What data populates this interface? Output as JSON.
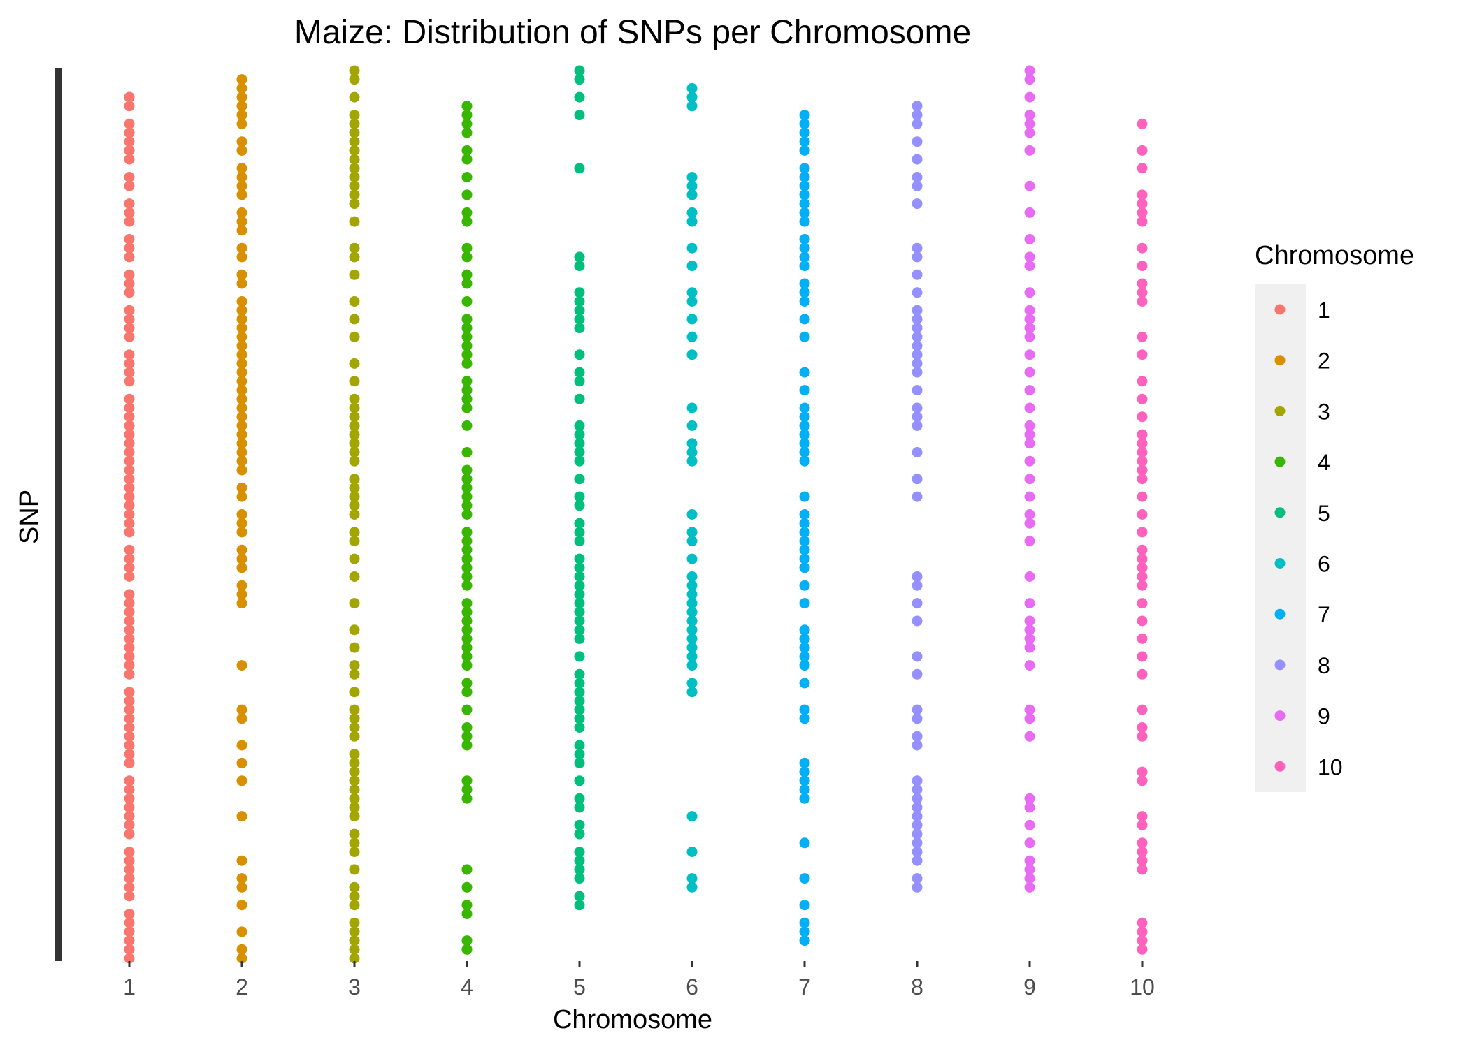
{
  "chart_data": {
    "type": "scatter",
    "title": "Maize: Distribution of SNPs per Chromosome",
    "xlabel": "Chromosome",
    "ylabel": "SNP",
    "categories": [
      "1",
      "2",
      "3",
      "4",
      "5",
      "6",
      "7",
      "8",
      "9",
      "10"
    ],
    "ylim": [
      0,
      1
    ],
    "grid": false,
    "legend": {
      "title": "Chromosome",
      "placement": "right",
      "entries": [
        "1",
        "2",
        "3",
        "4",
        "5",
        "6",
        "7",
        "8",
        "9",
        "10"
      ]
    },
    "colors": [
      "#F8766D",
      "#D89000",
      "#A3A500",
      "#39B600",
      "#00BF7D",
      "#00BFC4",
      "#00B0F6",
      "#9590FF",
      "#E76BF3",
      "#FF62BC"
    ],
    "series": [
      {
        "chromosome": "1",
        "values": [
          0.03,
          0.03,
          0.03,
          0.03,
          0.04,
          0.06,
          0.07,
          0.07,
          0.08,
          0.09,
          0.09,
          0.1,
          0.12,
          0.13,
          0.15,
          0.16,
          0.17,
          0.19,
          0.2,
          0.21,
          0.23,
          0.24,
          0.25,
          0.27,
          0.28,
          0.29,
          0.3,
          0.32,
          0.33,
          0.34,
          0.35,
          0.37,
          0.38,
          0.39,
          0.4,
          0.41,
          0.42,
          0.43,
          0.44,
          0.45,
          0.46,
          0.47,
          0.48,
          0.49,
          0.5,
          0.51,
          0.52,
          0.54,
          0.55,
          0.56,
          0.57,
          0.59,
          0.6,
          0.61,
          0.62,
          0.63,
          0.64,
          0.65,
          0.66,
          0.67,
          0.68,
          0.7,
          0.71,
          0.72,
          0.73,
          0.74,
          0.75,
          0.76,
          0.77,
          0.78,
          0.8,
          0.81,
          0.82,
          0.83,
          0.84,
          0.85,
          0.86,
          0.88,
          0.89,
          0.9,
          0.91,
          0.92,
          0.93,
          0.95,
          0.96,
          0.97,
          0.98,
          0.99,
          0.99,
          1.0
        ]
      },
      {
        "chromosome": "2",
        "values": [
          0.01,
          0.01,
          0.02,
          0.03,
          0.04,
          0.05,
          0.06,
          0.08,
          0.09,
          0.11,
          0.12,
          0.13,
          0.14,
          0.16,
          0.17,
          0.18,
          0.2,
          0.21,
          0.23,
          0.24,
          0.26,
          0.27,
          0.28,
          0.29,
          0.3,
          0.31,
          0.32,
          0.33,
          0.34,
          0.35,
          0.36,
          0.37,
          0.38,
          0.39,
          0.4,
          0.41,
          0.42,
          0.43,
          0.44,
          0.45,
          0.47,
          0.48,
          0.5,
          0.51,
          0.52,
          0.54,
          0.55,
          0.56,
          0.58,
          0.59,
          0.6,
          0.67,
          0.72,
          0.73,
          0.76,
          0.78,
          0.8,
          0.84,
          0.89,
          0.91,
          0.92,
          0.94,
          0.97,
          0.99,
          1.0
        ]
      },
      {
        "chromosome": "3",
        "values": [
          0.0,
          0.01,
          0.03,
          0.05,
          0.06,
          0.07,
          0.08,
          0.09,
          0.1,
          0.11,
          0.12,
          0.13,
          0.14,
          0.15,
          0.17,
          0.2,
          0.21,
          0.23,
          0.26,
          0.28,
          0.3,
          0.33,
          0.35,
          0.37,
          0.38,
          0.39,
          0.4,
          0.41,
          0.42,
          0.43,
          0.44,
          0.46,
          0.47,
          0.48,
          0.49,
          0.5,
          0.52,
          0.53,
          0.55,
          0.57,
          0.6,
          0.63,
          0.65,
          0.67,
          0.68,
          0.7,
          0.72,
          0.73,
          0.74,
          0.75,
          0.77,
          0.78,
          0.79,
          0.8,
          0.81,
          0.82,
          0.83,
          0.84,
          0.86,
          0.87,
          0.88,
          0.9,
          0.92,
          0.93,
          0.94,
          0.96,
          0.97,
          0.98,
          0.99,
          1.0
        ]
      },
      {
        "chromosome": "4",
        "values": [
          0.04,
          0.05,
          0.06,
          0.07,
          0.09,
          0.1,
          0.12,
          0.14,
          0.16,
          0.17,
          0.2,
          0.21,
          0.23,
          0.24,
          0.26,
          0.28,
          0.29,
          0.3,
          0.31,
          0.32,
          0.33,
          0.35,
          0.36,
          0.37,
          0.38,
          0.4,
          0.43,
          0.45,
          0.46,
          0.47,
          0.48,
          0.49,
          0.5,
          0.52,
          0.53,
          0.54,
          0.55,
          0.56,
          0.57,
          0.58,
          0.6,
          0.61,
          0.62,
          0.63,
          0.64,
          0.65,
          0.66,
          0.67,
          0.69,
          0.7,
          0.72,
          0.74,
          0.75,
          0.76,
          0.8,
          0.81,
          0.82,
          0.9,
          0.92,
          0.94,
          0.95,
          0.98,
          0.99,
          0.99
        ]
      },
      {
        "chromosome": "5",
        "values": [
          0.0,
          0.01,
          0.03,
          0.05,
          0.11,
          0.21,
          0.22,
          0.25,
          0.26,
          0.27,
          0.28,
          0.29,
          0.32,
          0.34,
          0.35,
          0.37,
          0.4,
          0.41,
          0.42,
          0.43,
          0.44,
          0.46,
          0.48,
          0.49,
          0.51,
          0.52,
          0.53,
          0.55,
          0.56,
          0.57,
          0.58,
          0.59,
          0.6,
          0.61,
          0.62,
          0.63,
          0.64,
          0.66,
          0.68,
          0.69,
          0.7,
          0.71,
          0.72,
          0.73,
          0.74,
          0.76,
          0.77,
          0.78,
          0.8,
          0.82,
          0.83,
          0.85,
          0.86,
          0.88,
          0.89,
          0.9,
          0.91,
          0.93,
          0.94
        ]
      },
      {
        "chromosome": "6",
        "values": [
          0.02,
          0.03,
          0.04,
          0.12,
          0.13,
          0.14,
          0.16,
          0.17,
          0.2,
          0.22,
          0.25,
          0.26,
          0.28,
          0.3,
          0.32,
          0.38,
          0.4,
          0.42,
          0.43,
          0.44,
          0.5,
          0.52,
          0.53,
          0.55,
          0.57,
          0.58,
          0.59,
          0.6,
          0.61,
          0.62,
          0.63,
          0.64,
          0.65,
          0.66,
          0.67,
          0.69,
          0.7,
          0.84,
          0.88,
          0.91,
          0.92
        ]
      },
      {
        "chromosome": "7",
        "values": [
          0.05,
          0.06,
          0.07,
          0.08,
          0.09,
          0.11,
          0.12,
          0.13,
          0.14,
          0.15,
          0.16,
          0.17,
          0.19,
          0.2,
          0.21,
          0.22,
          0.24,
          0.25,
          0.26,
          0.28,
          0.3,
          0.34,
          0.36,
          0.38,
          0.39,
          0.4,
          0.41,
          0.42,
          0.43,
          0.44,
          0.48,
          0.5,
          0.51,
          0.52,
          0.53,
          0.54,
          0.55,
          0.56,
          0.58,
          0.6,
          0.63,
          0.64,
          0.65,
          0.66,
          0.67,
          0.69,
          0.72,
          0.73,
          0.78,
          0.79,
          0.8,
          0.81,
          0.82,
          0.87,
          0.91,
          0.94,
          0.96,
          0.97,
          0.98
        ]
      },
      {
        "chromosome": "8",
        "values": [
          0.04,
          0.05,
          0.06,
          0.08,
          0.1,
          0.12,
          0.13,
          0.15,
          0.2,
          0.21,
          0.23,
          0.25,
          0.27,
          0.28,
          0.29,
          0.3,
          0.31,
          0.32,
          0.33,
          0.34,
          0.36,
          0.38,
          0.39,
          0.4,
          0.43,
          0.46,
          0.48,
          0.57,
          0.58,
          0.6,
          0.62,
          0.66,
          0.68,
          0.72,
          0.73,
          0.75,
          0.76,
          0.8,
          0.81,
          0.82,
          0.83,
          0.84,
          0.85,
          0.86,
          0.87,
          0.88,
          0.89,
          0.91,
          0.92
        ]
      },
      {
        "chromosome": "9",
        "values": [
          0.0,
          0.01,
          0.03,
          0.05,
          0.06,
          0.07,
          0.09,
          0.13,
          0.16,
          0.19,
          0.21,
          0.22,
          0.25,
          0.27,
          0.28,
          0.29,
          0.3,
          0.32,
          0.34,
          0.36,
          0.38,
          0.4,
          0.41,
          0.42,
          0.44,
          0.46,
          0.48,
          0.5,
          0.51,
          0.53,
          0.57,
          0.6,
          0.62,
          0.63,
          0.64,
          0.65,
          0.67,
          0.72,
          0.73,
          0.75,
          0.82,
          0.83,
          0.85,
          0.87,
          0.89,
          0.9,
          0.91,
          0.92
        ]
      },
      {
        "chromosome": "10",
        "values": [
          0.06,
          0.09,
          0.11,
          0.14,
          0.15,
          0.16,
          0.17,
          0.2,
          0.22,
          0.24,
          0.25,
          0.26,
          0.3,
          0.32,
          0.35,
          0.37,
          0.39,
          0.41,
          0.42,
          0.43,
          0.44,
          0.45,
          0.46,
          0.48,
          0.5,
          0.52,
          0.54,
          0.55,
          0.56,
          0.57,
          0.58,
          0.6,
          0.62,
          0.64,
          0.66,
          0.68,
          0.72,
          0.74,
          0.75,
          0.79,
          0.8,
          0.84,
          0.85,
          0.87,
          0.88,
          0.89,
          0.9,
          0.96,
          0.97,
          0.98,
          0.99
        ]
      }
    ]
  }
}
